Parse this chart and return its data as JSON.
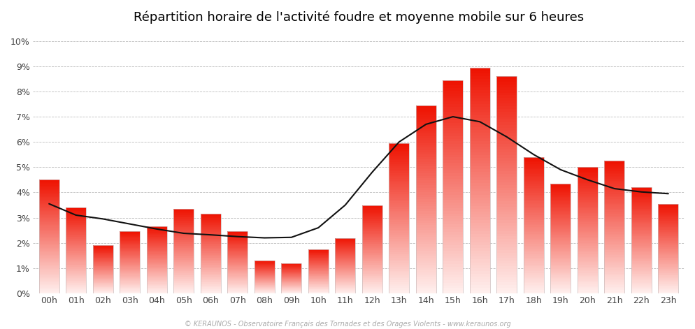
{
  "title": "Répartition horaire de l'activité foudre et moyenne mobile sur 6 heures",
  "footnote": "© KERAUNOS - Observatoire Français des Tornades et des Orages Violents - www.keraunos.org",
  "hours": [
    "00h",
    "01h",
    "02h",
    "03h",
    "04h",
    "05h",
    "06h",
    "07h",
    "08h",
    "09h",
    "10h",
    "11h",
    "12h",
    "13h",
    "14h",
    "15h",
    "16h",
    "17h",
    "18h",
    "19h",
    "20h",
    "21h",
    "22h",
    "23h"
  ],
  "values": [
    4.5,
    3.4,
    1.9,
    2.45,
    2.65,
    3.35,
    3.15,
    2.45,
    1.3,
    1.2,
    1.75,
    2.2,
    3.5,
    5.95,
    7.45,
    8.45,
    8.95,
    8.6,
    5.4,
    4.35,
    5.0,
    5.25,
    4.2,
    3.55
  ],
  "moving_avg": [
    3.55,
    3.1,
    2.95,
    2.75,
    2.55,
    2.38,
    2.32,
    2.25,
    2.2,
    2.22,
    2.6,
    3.5,
    4.8,
    6.0,
    6.7,
    7.0,
    6.8,
    6.2,
    5.5,
    4.9,
    4.5,
    4.15,
    4.02,
    3.95
  ],
  "ylim_max": 0.105,
  "ytick_vals": [
    0.0,
    0.01,
    0.02,
    0.03,
    0.04,
    0.05,
    0.06,
    0.07,
    0.08,
    0.09,
    0.1
  ],
  "ytick_labels": [
    "0%",
    "1%",
    "2%",
    "3%",
    "4%",
    "5%",
    "6%",
    "7%",
    "8%",
    "9%",
    "10%"
  ],
  "bar_color_top": "#ee1100",
  "bar_color_bottom": "#fff0ee",
  "bar_edge_color": "#ccbbbb",
  "line_color": "#111111",
  "background_color": "#ffffff",
  "grid_color": "#bbbbbb",
  "title_fontsize": 13,
  "footnote_fontsize": 7,
  "tick_fontsize": 9,
  "bar_width": 0.75,
  "n_strips": 80
}
